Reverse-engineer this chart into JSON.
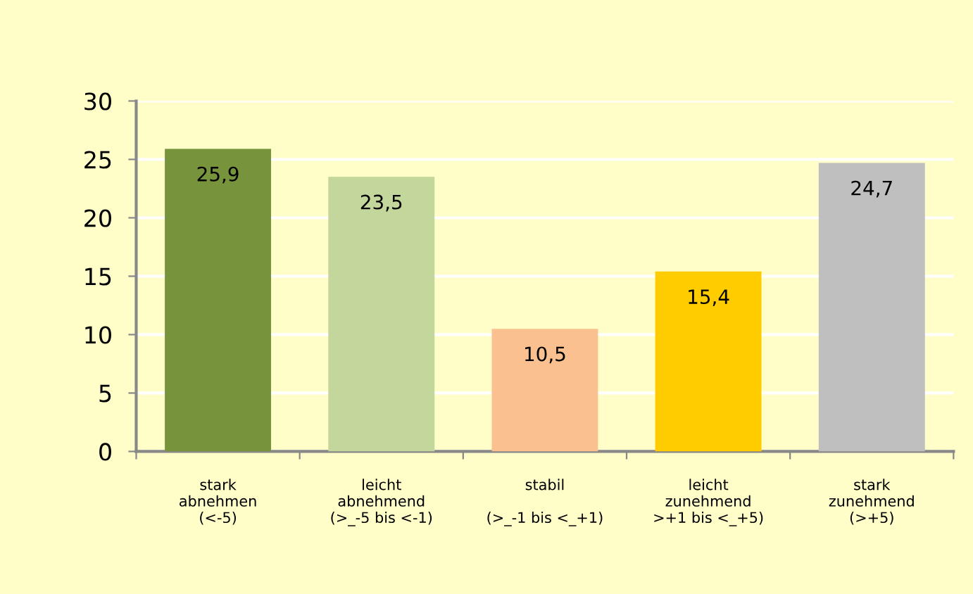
{
  "chart_data": {
    "type": "bar",
    "categories": [
      "stark\nabnehmen\n(<-5)",
      "leicht\nabnehmend\n(>_-5 bis <-1)",
      "stabil\n\n(>_-1 bis <_+1)",
      "leicht\nzunehmend\n>+1 bis <_+5)",
      "stark\nzunehmend\n(>+5)"
    ],
    "values": [
      25.9,
      23.5,
      10.5,
      15.4,
      24.7
    ],
    "colors": [
      "#77933c",
      "#c3d69b",
      "#fac090",
      "#ffcc00",
      "#bfbfbf"
    ],
    "value_labels": [
      "25,9",
      "23,5",
      "10,5",
      "15,4",
      "24,7"
    ],
    "ylim": [
      0,
      30
    ],
    "yticks": [
      0,
      5,
      10,
      15,
      20,
      25,
      30
    ],
    "grid": "y",
    "legend": false
  }
}
